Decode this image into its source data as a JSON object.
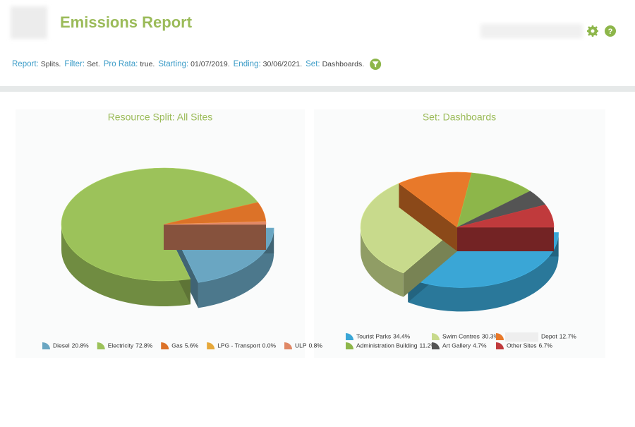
{
  "header": {
    "title": "Emissions Report"
  },
  "filter_bar": {
    "items": [
      {
        "key": "Report:",
        "value": "Splits."
      },
      {
        "key": "Filter:",
        "value": "Set."
      },
      {
        "key": "Pro Rata:",
        "value": "true."
      },
      {
        "key": "Starting:",
        "value": "01/07/2019."
      },
      {
        "key": "Ending:",
        "value": "30/06/2021."
      },
      {
        "key": "Set:",
        "value": "Dashboards."
      }
    ]
  },
  "chart_data": [
    {
      "type": "pie",
      "title": "Resource Split: All Sites",
      "categories": [
        "Diesel",
        "Electricity",
        "Gas",
        "LPG - Transport",
        "ULP"
      ],
      "values": [
        20.8,
        72.8,
        5.6,
        0.0,
        0.8
      ],
      "value_labels": [
        "20.8%",
        "72.8%",
        "5.6%",
        "0.0%",
        "0.8%"
      ],
      "colors": [
        "#6aa6c2",
        "#9cc25a",
        "#dc7228",
        "#e6a83a",
        "#e08866"
      ],
      "exploded": [
        0
      ],
      "legend": "bottom"
    },
    {
      "type": "pie",
      "title": "Set: Dashboards",
      "categories": [
        "Tourist Parks",
        "Swim Centres",
        "Depot",
        "Administration Building",
        "Art Gallery",
        "Other Sites"
      ],
      "values": [
        34.4,
        30.3,
        12.7,
        11.2,
        4.7,
        6.7
      ],
      "value_labels": [
        "34.4%",
        "30.3%",
        "12.7%",
        "11.2%",
        "4.7%",
        "6.7%"
      ],
      "colors": [
        "#3aa6d6",
        "#c8da8c",
        "#e8792a",
        "#8db64a",
        "#545454",
        "#c03a3c"
      ],
      "exploded": [
        0
      ],
      "legend": "bottom"
    }
  ]
}
